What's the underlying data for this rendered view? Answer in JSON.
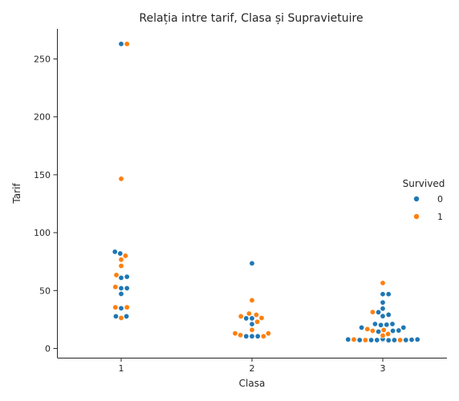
{
  "chart_data": {
    "type": "scatter",
    "style": "swarm",
    "title": "Relația intre tarif, Clasa și Supravietuire",
    "xlabel": "Clasa",
    "ylabel": "Tarif",
    "categories": [
      "1",
      "2",
      "3"
    ],
    "yticks": [
      0,
      50,
      100,
      150,
      200,
      250
    ],
    "ylim": [
      -8,
      276
    ],
    "grid": false,
    "legend": {
      "title": "Survived",
      "placement": "right",
      "entries": [
        {
          "label": "0",
          "color": "#1f77b4"
        },
        {
          "label": "1",
          "color": "#ff7f0e"
        }
      ]
    },
    "series": [
      {
        "name": "0",
        "color": "#1f77b4",
        "points": [
          {
            "x": "1",
            "y": 263
          },
          {
            "x": "1",
            "y": 83.5
          },
          {
            "x": "1",
            "y": 82
          },
          {
            "x": "1",
            "y": 61.9
          },
          {
            "x": "1",
            "y": 61
          },
          {
            "x": "1",
            "y": 52
          },
          {
            "x": "1",
            "y": 52
          },
          {
            "x": "1",
            "y": 47.1
          },
          {
            "x": "1",
            "y": 34.7
          },
          {
            "x": "1",
            "y": 27.7
          },
          {
            "x": "1",
            "y": 27.7
          },
          {
            "x": "2",
            "y": 73.5
          },
          {
            "x": "2",
            "y": 26
          },
          {
            "x": "2",
            "y": 26
          },
          {
            "x": "2",
            "y": 21
          },
          {
            "x": "2",
            "y": 10.5
          },
          {
            "x": "2",
            "y": 10.5
          },
          {
            "x": "2",
            "y": 10.5
          },
          {
            "x": "3",
            "y": 46.9
          },
          {
            "x": "3",
            "y": 46.9
          },
          {
            "x": "3",
            "y": 39.7
          },
          {
            "x": "3",
            "y": 34.4
          },
          {
            "x": "3",
            "y": 31.3
          },
          {
            "x": "3",
            "y": 29.1
          },
          {
            "x": "3",
            "y": 27.9
          },
          {
            "x": "3",
            "y": 21.1
          },
          {
            "x": "3",
            "y": 21.1
          },
          {
            "x": "3",
            "y": 20.5
          },
          {
            "x": "3",
            "y": 20.2
          },
          {
            "x": "3",
            "y": 18
          },
          {
            "x": "3",
            "y": 18
          },
          {
            "x": "3",
            "y": 15.5
          },
          {
            "x": "3",
            "y": 15.2
          },
          {
            "x": "3",
            "y": 14.5
          },
          {
            "x": "3",
            "y": 8.1
          },
          {
            "x": "3",
            "y": 8.1
          },
          {
            "x": "3",
            "y": 8.05
          },
          {
            "x": "3",
            "y": 8.05
          },
          {
            "x": "3",
            "y": 8.05
          },
          {
            "x": "3",
            "y": 8.05
          },
          {
            "x": "3",
            "y": 7.9
          },
          {
            "x": "3",
            "y": 7.9
          },
          {
            "x": "3",
            "y": 7.85
          },
          {
            "x": "3",
            "y": 7.8
          },
          {
            "x": "3",
            "y": 7.75
          },
          {
            "x": "3",
            "y": 7.75
          },
          {
            "x": "3",
            "y": 7.75
          },
          {
            "x": "3",
            "y": 7.75
          },
          {
            "x": "3",
            "y": 7.75
          },
          {
            "x": "3",
            "y": 7.5
          },
          {
            "x": "3",
            "y": 7.25
          },
          {
            "x": "3",
            "y": 7.25
          },
          {
            "x": "3",
            "y": 7.23
          },
          {
            "x": "3",
            "y": 7.23
          },
          {
            "x": "3",
            "y": 7.22
          },
          {
            "x": "3",
            "y": 7.05
          },
          {
            "x": "3",
            "y": 7
          }
        ]
      },
      {
        "name": "1",
        "color": "#ff7f0e",
        "points": [
          {
            "x": "1",
            "y": 263
          },
          {
            "x": "1",
            "y": 146.5
          },
          {
            "x": "1",
            "y": 80
          },
          {
            "x": "1",
            "y": 76.7
          },
          {
            "x": "1",
            "y": 71.3
          },
          {
            "x": "1",
            "y": 63.4
          },
          {
            "x": "1",
            "y": 53.1
          },
          {
            "x": "1",
            "y": 35.5
          },
          {
            "x": "1",
            "y": 35.5
          },
          {
            "x": "1",
            "y": 26.3
          },
          {
            "x": "2",
            "y": 41.6
          },
          {
            "x": "2",
            "y": 30.1
          },
          {
            "x": "2",
            "y": 29
          },
          {
            "x": "2",
            "y": 27.7
          },
          {
            "x": "2",
            "y": 26.3
          },
          {
            "x": "2",
            "y": 23
          },
          {
            "x": "2",
            "y": 16
          },
          {
            "x": "2",
            "y": 13
          },
          {
            "x": "2",
            "y": 13
          },
          {
            "x": "2",
            "y": 11.5
          },
          {
            "x": "2",
            "y": 10.5
          },
          {
            "x": "3",
            "y": 56.5
          },
          {
            "x": "3",
            "y": 31.4
          },
          {
            "x": "3",
            "y": 16.7
          },
          {
            "x": "3",
            "y": 15.9
          },
          {
            "x": "3",
            "y": 15.2
          },
          {
            "x": "3",
            "y": 12.5
          },
          {
            "x": "3",
            "y": 11.1
          },
          {
            "x": "3",
            "y": 11.1
          },
          {
            "x": "3",
            "y": 8.05
          },
          {
            "x": "3",
            "y": 7.93
          },
          {
            "x": "3",
            "y": 7.93
          },
          {
            "x": "3",
            "y": 7.9
          },
          {
            "x": "3",
            "y": 7.88
          },
          {
            "x": "3",
            "y": 7.85
          },
          {
            "x": "3",
            "y": 7.75
          },
          {
            "x": "3",
            "y": 7.75
          },
          {
            "x": "3",
            "y": 7.75
          },
          {
            "x": "3",
            "y": 7.75
          },
          {
            "x": "3",
            "y": 7.73
          },
          {
            "x": "3",
            "y": 7.23
          },
          {
            "x": "3",
            "y": 7.23
          }
        ]
      }
    ]
  }
}
